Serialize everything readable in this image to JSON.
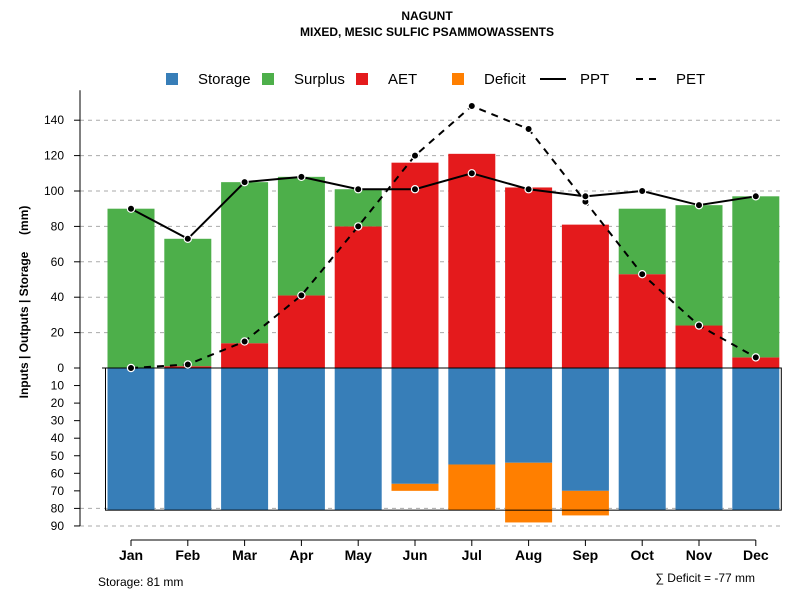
{
  "chart_data": {
    "type": "bar",
    "title": "NAGUNT",
    "subtitle": "MIXED, MESIC SULFIC PSAMMOWASSENTS",
    "ylabel": "Inputs | Outputs | Storage     (mm)",
    "categories": [
      "Jan",
      "Feb",
      "Mar",
      "Apr",
      "May",
      "Jun",
      "Jul",
      "Aug",
      "Sep",
      "Oct",
      "Nov",
      "Dec"
    ],
    "ylim_upper": [
      0,
      150
    ],
    "ylim_lower": [
      0,
      90
    ],
    "upper_ticks": [
      "0",
      "20",
      "40",
      "60",
      "80",
      "100",
      "120",
      "140"
    ],
    "upper_tick_values": [
      0,
      20,
      40,
      60,
      80,
      100,
      120,
      140
    ],
    "lower_ticks": [
      "0",
      "10",
      "20",
      "30",
      "40",
      "50",
      "60",
      "70",
      "80",
      "90"
    ],
    "lower_tick_values": [
      0,
      10,
      20,
      30,
      40,
      50,
      60,
      70,
      80,
      90
    ],
    "series": [
      {
        "name": "Storage",
        "color": "#377EB8",
        "values": [
          81,
          81,
          81,
          81,
          81,
          66,
          55,
          54,
          70,
          81,
          81,
          81
        ]
      },
      {
        "name": "Surplus",
        "color": "#4DAF4A",
        "values": [
          90,
          72,
          91,
          67,
          21,
          0,
          0,
          0,
          0,
          37,
          68,
          91
        ]
      },
      {
        "name": "AET",
        "color": "#E41A1C",
        "values": [
          0,
          1,
          14,
          41,
          80,
          116,
          121,
          102,
          81,
          53,
          24,
          6
        ]
      },
      {
        "name": "Deficit",
        "color": "#FF7F00",
        "values": [
          0,
          0,
          0,
          0,
          0,
          4,
          26,
          34,
          14,
          0,
          0,
          0
        ]
      },
      {
        "name": "PPT",
        "color": "#000000",
        "style": "solid",
        "values": [
          90,
          73,
          105,
          108,
          101,
          101,
          110,
          101,
          97,
          100,
          92,
          97
        ]
      },
      {
        "name": "PET",
        "color": "#000000",
        "style": "dashed",
        "values": [
          0,
          2,
          15,
          41,
          80,
          120,
          148,
          135,
          94,
          53,
          24,
          6
        ]
      }
    ],
    "legend": [
      "Storage",
      "Surplus",
      "AET",
      "Deficit",
      "PPT",
      "PET"
    ],
    "legend_position": "top",
    "grid": true,
    "storage_note": "Storage: 81 mm",
    "deficit_note": "∑ Deficit = -77 mm"
  }
}
